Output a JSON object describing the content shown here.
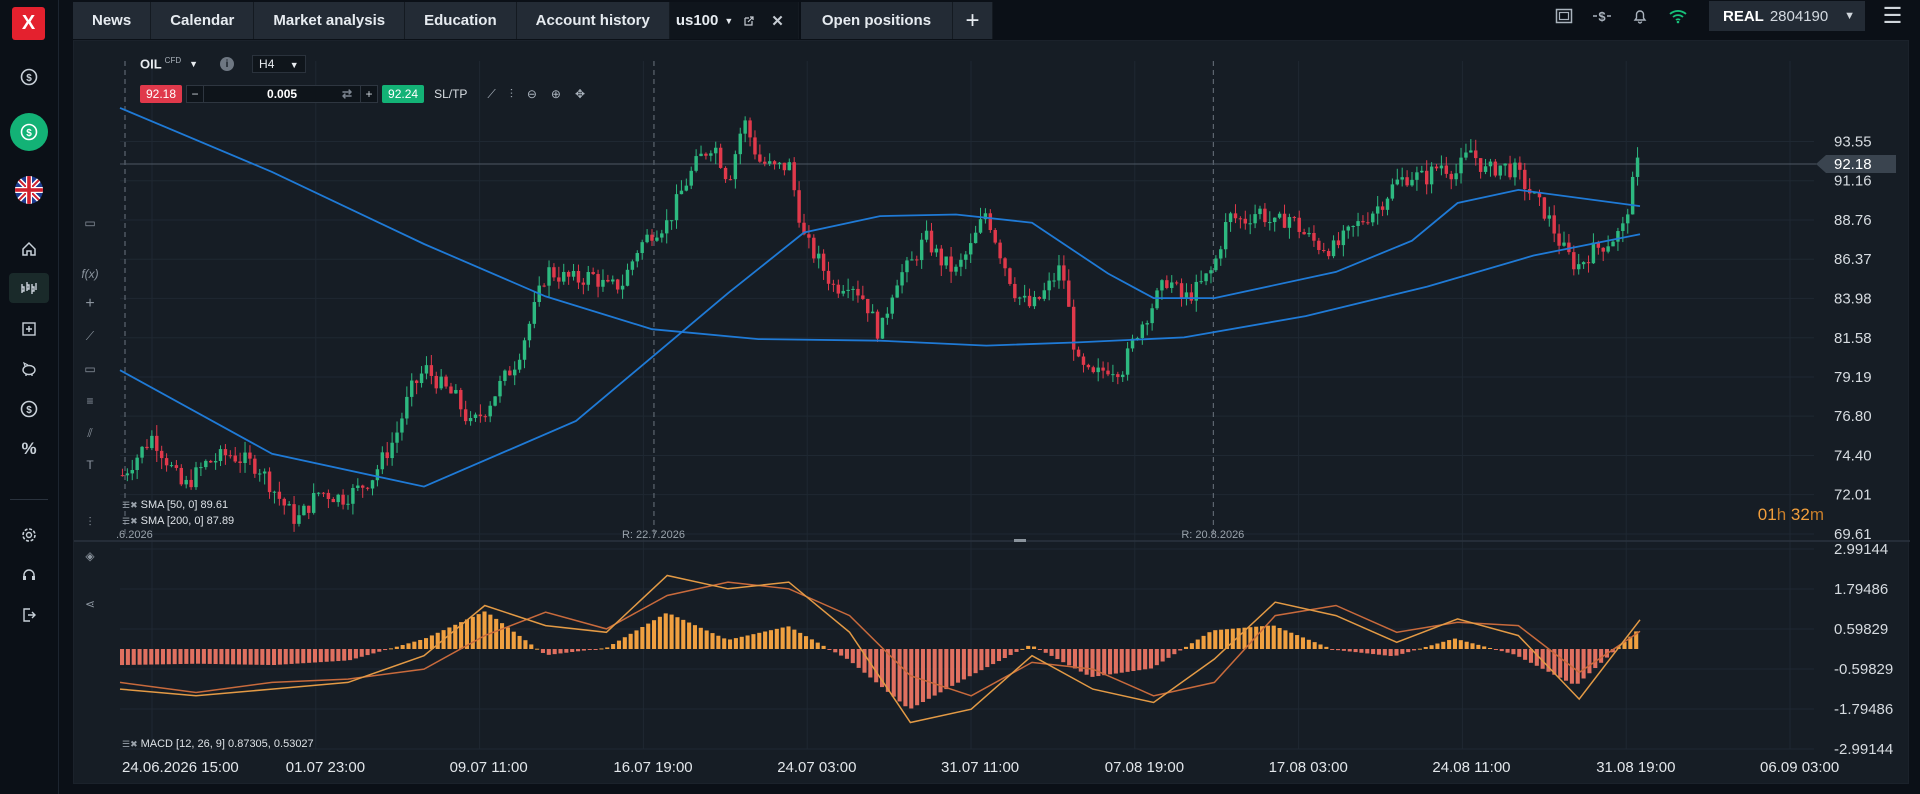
{
  "rail": {
    "logo": "X",
    "icons": [
      "dollar-coin-icon",
      "deposit-icon",
      "uk-flag-icon",
      "home-icon",
      "market-chart-icon",
      "calendar-icon",
      "piggy-bank-icon",
      "dollar-circle-icon",
      "percent-icon",
      "settings-icon",
      "headset-icon",
      "logout-icon"
    ]
  },
  "tabs": [
    {
      "label": "News"
    },
    {
      "label": "Calendar"
    },
    {
      "label": "Market analysis"
    },
    {
      "label": "Education"
    },
    {
      "label": "Account history"
    }
  ],
  "active_tab": {
    "label": "us100",
    "close": "✕"
  },
  "open_positions": "Open positions",
  "account": {
    "type": "REAL",
    "number": "2804190"
  },
  "instrument": {
    "symbol": "OIL",
    "type": "CFD",
    "timeframe": "H4"
  },
  "trade": {
    "sell": "92.18",
    "volume": "0.005",
    "buy": "92.24",
    "sltp": "SL/TP"
  },
  "indicators": {
    "sma50": "SMA [50, 0] 89.61",
    "sma200": "SMA [200, 0] 87.89",
    "macd": "MACD [12, 26, 9] 0.87305, 0.53027"
  },
  "timer": {
    "h": "01",
    "m": "32"
  },
  "colors": {
    "bull": "#2db980",
    "bear": "#e0394b",
    "ma": "#1f7ad6",
    "macd_pos": "#f0a040",
    "macd_neg": "#e07060",
    "grid": "#1f2832"
  },
  "chart_data": {
    "type": "candlestick",
    "price_axis": [
      "93.55",
      "91.16",
      "88.76",
      "86.37",
      "83.98",
      "81.58",
      "79.19",
      "76.80",
      "74.40",
      "72.01",
      "69.61"
    ],
    "current_price": "92.18",
    "ylim": [
      69.61,
      95.9
    ],
    "macd_axis": [
      "2.99144",
      "1.79486",
      "0.59829",
      "-0.59829",
      "-1.79486",
      "-2.99144"
    ],
    "macd_ylim": [
      -2.99144,
      2.99144
    ],
    "x_labels": [
      "24.06.2026 15:00",
      "01.07 23:00",
      "09.07 11:00",
      "16.07 19:00",
      "24.07 03:00",
      "31.07 11:00",
      "07.08 19:00",
      "17.08 03:00",
      "24.08 11:00",
      "31.08 19:00",
      "06.09 03:00"
    ],
    "rollovers": [
      {
        "label": ".6.2026",
        "x": 0.0
      },
      {
        "label": "R: 22.7.2026",
        "x": 0.348
      },
      {
        "label": "R: 20.8.2026",
        "x": 0.716
      }
    ],
    "path": [
      [
        0,
        73.2
      ],
      [
        0.02,
        75.6
      ],
      [
        0.04,
        72.4
      ],
      [
        0.055,
        73.9
      ],
      [
        0.07,
        74.5
      ],
      [
        0.09,
        73.7
      ],
      [
        0.105,
        71.6
      ],
      [
        0.115,
        70.4
      ],
      [
        0.13,
        72.2
      ],
      [
        0.145,
        71.8
      ],
      [
        0.155,
        72.3
      ],
      [
        0.165,
        73.1
      ],
      [
        0.18,
        75.5
      ],
      [
        0.19,
        78.3
      ],
      [
        0.2,
        79.7
      ],
      [
        0.21,
        78.7
      ],
      [
        0.22,
        77.9
      ],
      [
        0.23,
        76.2
      ],
      [
        0.24,
        77.3
      ],
      [
        0.25,
        78.8
      ],
      [
        0.26,
        80.2
      ],
      [
        0.27,
        82.8
      ],
      [
        0.28,
        85.7
      ],
      [
        0.29,
        85.3
      ],
      [
        0.3,
        85.1
      ],
      [
        0.31,
        85.4
      ],
      [
        0.32,
        84.6
      ],
      [
        0.33,
        84.9
      ],
      [
        0.34,
        87.0
      ],
      [
        0.35,
        88.1
      ],
      [
        0.36,
        88.6
      ],
      [
        0.37,
        90.7
      ],
      [
        0.38,
        92.4
      ],
      [
        0.39,
        93.5
      ],
      [
        0.4,
        91.2
      ],
      [
        0.41,
        94.9
      ],
      [
        0.42,
        92.4
      ],
      [
        0.43,
        91.9
      ],
      [
        0.44,
        92.1
      ],
      [
        0.45,
        87.6
      ],
      [
        0.46,
        86.2
      ],
      [
        0.47,
        84.6
      ],
      [
        0.48,
        85.1
      ],
      [
        0.49,
        83.9
      ],
      [
        0.5,
        81.7
      ],
      [
        0.51,
        85.1
      ],
      [
        0.52,
        86.0
      ],
      [
        0.53,
        87.7
      ],
      [
        0.54,
        86.3
      ],
      [
        0.55,
        85.6
      ],
      [
        0.56,
        87.1
      ],
      [
        0.57,
        89.3
      ],
      [
        0.58,
        86.6
      ],
      [
        0.59,
        84.2
      ],
      [
        0.6,
        83.4
      ],
      [
        0.61,
        84.5
      ],
      [
        0.62,
        86.0
      ],
      [
        0.63,
        80.0
      ],
      [
        0.64,
        79.1
      ],
      [
        0.65,
        79.8
      ],
      [
        0.66,
        79.7
      ],
      [
        0.67,
        82.0
      ],
      [
        0.68,
        83.6
      ],
      [
        0.69,
        85.2
      ],
      [
        0.7,
        83.9
      ],
      [
        0.71,
        84.6
      ],
      [
        0.72,
        85.8
      ],
      [
        0.73,
        89.0
      ],
      [
        0.74,
        88.7
      ],
      [
        0.75,
        89.4
      ],
      [
        0.76,
        88.4
      ],
      [
        0.77,
        89.0
      ],
      [
        0.78,
        87.9
      ],
      [
        0.79,
        87.2
      ],
      [
        0.8,
        87.0
      ],
      [
        0.81,
        88.0
      ],
      [
        0.82,
        88.9
      ],
      [
        0.83,
        89.7
      ],
      [
        0.84,
        91.0
      ],
      [
        0.85,
        91.5
      ],
      [
        0.86,
        91.3
      ],
      [
        0.87,
        92.2
      ],
      [
        0.88,
        91.6
      ],
      [
        0.89,
        93.0
      ],
      [
        0.9,
        91.7
      ],
      [
        0.91,
        92.1
      ],
      [
        0.92,
        91.7
      ],
      [
        0.93,
        90.3
      ],
      [
        0.94,
        89.1
      ],
      [
        0.95,
        87.1
      ],
      [
        0.96,
        85.9
      ],
      [
        0.97,
        86.9
      ],
      [
        0.98,
        87.4
      ],
      [
        0.99,
        88.1
      ],
      [
        1.0,
        92.18
      ]
    ],
    "sma50": [
      [
        0,
        79.6
      ],
      [
        0.1,
        74.5
      ],
      [
        0.2,
        72.5
      ],
      [
        0.3,
        76.5
      ],
      [
        0.4,
        84.3
      ],
      [
        0.45,
        88.0
      ],
      [
        0.5,
        89.0
      ],
      [
        0.55,
        89.1
      ],
      [
        0.6,
        88.6
      ],
      [
        0.65,
        85.5
      ],
      [
        0.68,
        84.0
      ],
      [
        0.72,
        84.0
      ],
      [
        0.8,
        85.6
      ],
      [
        0.85,
        87.5
      ],
      [
        0.88,
        89.8
      ],
      [
        0.92,
        90.6
      ],
      [
        1.0,
        89.61
      ]
    ],
    "sma200": [
      [
        0,
        95.6
      ],
      [
        0.1,
        91.7
      ],
      [
        0.2,
        87.3
      ],
      [
        0.28,
        84.1
      ],
      [
        0.35,
        82.1
      ],
      [
        0.42,
        81.5
      ],
      [
        0.5,
        81.4
      ],
      [
        0.57,
        81.1
      ],
      [
        0.63,
        81.3
      ],
      [
        0.7,
        81.6
      ],
      [
        0.78,
        82.9
      ],
      [
        0.86,
        84.7
      ],
      [
        0.93,
        86.6
      ],
      [
        1.0,
        87.89
      ]
    ],
    "macd": [
      [
        0,
        -1.2
      ],
      [
        0.05,
        -1.4
      ],
      [
        0.1,
        -1.2
      ],
      [
        0.15,
        -1.0
      ],
      [
        0.2,
        -0.2
      ],
      [
        0.24,
        1.3
      ],
      [
        0.28,
        0.7
      ],
      [
        0.32,
        0.5
      ],
      [
        0.36,
        2.2
      ],
      [
        0.4,
        1.8
      ],
      [
        0.44,
        2.0
      ],
      [
        0.48,
        0.5
      ],
      [
        0.52,
        -2.2
      ],
      [
        0.56,
        -1.8
      ],
      [
        0.6,
        -0.2
      ],
      [
        0.64,
        -1.2
      ],
      [
        0.68,
        -1.6
      ],
      [
        0.72,
        -0.3
      ],
      [
        0.76,
        1.4
      ],
      [
        0.8,
        1.0
      ],
      [
        0.84,
        0.2
      ],
      [
        0.88,
        0.9
      ],
      [
        0.92,
        0.4
      ],
      [
        0.96,
        -1.5
      ],
      [
        1.0,
        0.87305
      ]
    ],
    "signal": [
      [
        0,
        -1.0
      ],
      [
        0.05,
        -1.3
      ],
      [
        0.1,
        -1.0
      ],
      [
        0.15,
        -0.9
      ],
      [
        0.2,
        -0.6
      ],
      [
        0.24,
        0.4
      ],
      [
        0.28,
        1.1
      ],
      [
        0.32,
        0.6
      ],
      [
        0.36,
        1.6
      ],
      [
        0.4,
        2.0
      ],
      [
        0.44,
        1.8
      ],
      [
        0.48,
        1.0
      ],
      [
        0.52,
        -0.8
      ],
      [
        0.56,
        -1.4
      ],
      [
        0.6,
        -0.4
      ],
      [
        0.64,
        -0.6
      ],
      [
        0.68,
        -1.4
      ],
      [
        0.72,
        -1.0
      ],
      [
        0.76,
        1.0
      ],
      [
        0.8,
        1.3
      ],
      [
        0.84,
        0.5
      ],
      [
        0.88,
        0.8
      ],
      [
        0.92,
        0.7
      ],
      [
        0.96,
        -0.7
      ],
      [
        1.0,
        0.53027
      ]
    ]
  }
}
